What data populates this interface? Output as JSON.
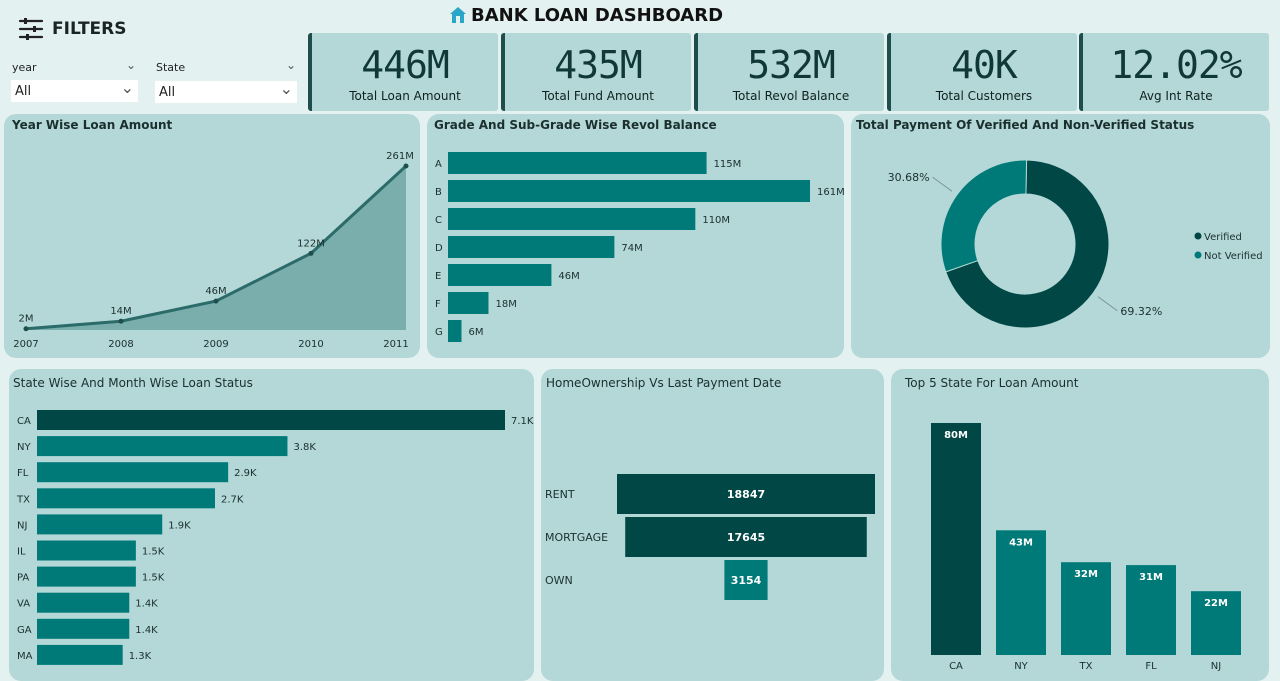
{
  "header": {
    "filters_label": "FILTERS",
    "title": "BANK LOAN DASHBOARD"
  },
  "filters": {
    "year": {
      "label": "year",
      "value": "All"
    },
    "state": {
      "label": "State",
      "value": "All"
    }
  },
  "kpis": [
    {
      "value": "446M",
      "label": "Total Loan Amount"
    },
    {
      "value": "435M",
      "label": "Total Fund Amount"
    },
    {
      "value": "532M",
      "label": "Total Revol Balance"
    },
    {
      "value": "40K",
      "label": "Total Customers"
    },
    {
      "value": "12.02%",
      "label": "Avg Int Rate"
    }
  ],
  "colors": {
    "bg": "#e3f1f0",
    "panel": "#b3d8d7",
    "teal": "#007a78",
    "dark": "#004745",
    "area": "#7aaeac"
  },
  "chart_data": [
    {
      "type": "area",
      "title": "Year Wise Loan Amount",
      "categories": [
        "2007",
        "2008",
        "2009",
        "2010",
        "2011"
      ],
      "values": [
        2,
        14,
        46,
        122,
        261
      ],
      "labels": [
        "2M",
        "14M",
        "46M",
        "122M",
        "261M"
      ]
    },
    {
      "type": "bar",
      "orientation": "horizontal",
      "title": "Grade And Sub-Grade Wise Revol Balance",
      "categories": [
        "A",
        "B",
        "C",
        "D",
        "E",
        "F",
        "G"
      ],
      "values": [
        115,
        161,
        110,
        74,
        46,
        18,
        6
      ],
      "labels": [
        "115M",
        "161M",
        "110M",
        "74M",
        "46M",
        "18M",
        "6M"
      ]
    },
    {
      "type": "pie",
      "title": "Total Payment Of Verified And Non-Verified Status",
      "categories": [
        "Verified",
        "Not Verified"
      ],
      "values": [
        69.32,
        30.68
      ],
      "labels": [
        "69.32%",
        "30.68%"
      ],
      "colors": [
        "#004745",
        "#007a78"
      ],
      "legend": "right"
    },
    {
      "type": "bar",
      "orientation": "horizontal",
      "title": "State Wise And Month Wise Loan Status",
      "categories": [
        "CA",
        "NY",
        "FL",
        "TX",
        "NJ",
        "IL",
        "PA",
        "VA",
        "GA",
        "MA"
      ],
      "values": [
        7.1,
        3.8,
        2.9,
        2.7,
        1.9,
        1.5,
        1.5,
        1.4,
        1.4,
        1.3
      ],
      "labels": [
        "7.1K",
        "3.8K",
        "2.9K",
        "2.7K",
        "1.9K",
        "1.5K",
        "1.5K",
        "1.4K",
        "1.4K",
        "1.3K"
      ]
    },
    {
      "type": "bar",
      "orientation": "funnel",
      "title": "HomeOwnership Vs Last Payment Date",
      "categories": [
        "RENT",
        "MORTGAGE",
        "OWN"
      ],
      "values": [
        18847,
        17645,
        3154
      ],
      "labels": [
        "18847",
        "17645",
        "3154"
      ]
    },
    {
      "type": "bar",
      "title": "Top 5 State For Loan Amount",
      "categories": [
        "CA",
        "NY",
        "TX",
        "FL",
        "NJ"
      ],
      "values": [
        80,
        43,
        32,
        31,
        22
      ],
      "labels": [
        "80M",
        "43M",
        "32M",
        "31M",
        "22M"
      ]
    }
  ]
}
